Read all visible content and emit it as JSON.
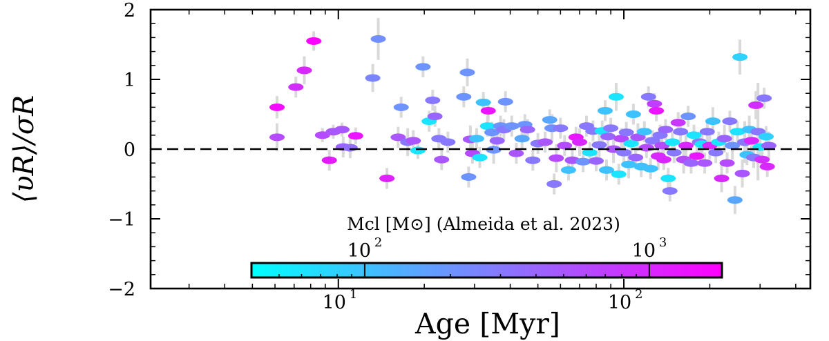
{
  "chart_data": {
    "type": "scatter",
    "title": "",
    "xlabel": "Age [Myr]",
    "ylabel_main": "⟨υR⟩/σR",
    "x_scale": "log",
    "xlim": [
      2.2,
      450
    ],
    "ylim": [
      -2,
      2
    ],
    "x_ticks": [
      {
        "base": "10",
        "exp": "1",
        "value": 10
      },
      {
        "base": "10",
        "exp": "2",
        "value": 100
      }
    ],
    "y_ticks": [
      {
        "label": "2",
        "value": 2
      },
      {
        "label": "1",
        "value": 1
      },
      {
        "label": "0",
        "value": 0
      },
      {
        "label": "−1",
        "value": -1
      },
      {
        "label": "−2",
        "value": -2
      }
    ],
    "reference_line": {
      "y": 0,
      "style": "dashed"
    },
    "grid": false,
    "colorbar": {
      "label": "Mcl [M⊙] (Almeida et al. 2023)",
      "scale": "log",
      "range": [
        40,
        1800
      ],
      "colors": [
        "#00ffff",
        "#ff00ff"
      ],
      "ticks": [
        {
          "base": "10",
          "exp": "2",
          "value": 100
        },
        {
          "base": "10",
          "exp": "3",
          "value": 1000
        }
      ],
      "placement": "bottom-center, inside axes"
    },
    "points": [
      {
        "x": 6.1,
        "y": 0.6,
        "err": 0.16,
        "m": 1500
      },
      {
        "x": 6.1,
        "y": 0.17,
        "err": 0.2,
        "m": 600
      },
      {
        "x": 7.1,
        "y": 0.89,
        "err": 0.15,
        "m": 900
      },
      {
        "x": 7.6,
        "y": 1.13,
        "err": 0.2,
        "m": 1000
      },
      {
        "x": 8.2,
        "y": 1.55,
        "err": 0.14,
        "m": 1700
      },
      {
        "x": 8.8,
        "y": 0.2,
        "err": 0.1,
        "m": 600
      },
      {
        "x": 9.3,
        "y": -0.16,
        "err": 0.15,
        "m": 1200
      },
      {
        "x": 9.6,
        "y": 0.25,
        "err": 0.1,
        "m": 500
      },
      {
        "x": 10.3,
        "y": 0.28,
        "err": 0.1,
        "m": 500
      },
      {
        "x": 10.4,
        "y": 0.03,
        "err": 0.15,
        "m": 400
      },
      {
        "x": 11.0,
        "y": 0.02,
        "err": 0.15,
        "m": 350
      },
      {
        "x": 11.5,
        "y": 0.19,
        "err": 0.12,
        "m": 1300
      },
      {
        "x": 13.2,
        "y": 1.02,
        "err": 0.2,
        "m": 250
      },
      {
        "x": 13.8,
        "y": 1.58,
        "err": 0.3,
        "m": 220
      },
      {
        "x": 14.8,
        "y": -0.42,
        "err": 0.15,
        "m": 1100
      },
      {
        "x": 16.6,
        "y": 0.6,
        "err": 0.15,
        "m": 200
      },
      {
        "x": 16.2,
        "y": 0.17,
        "err": 0.15,
        "m": 500
      },
      {
        "x": 17.5,
        "y": 0.1,
        "err": 0.2,
        "m": 300
      },
      {
        "x": 18.3,
        "y": 0.12,
        "err": 0.15,
        "m": 500
      },
      {
        "x": 19.0,
        "y": -0.02,
        "err": 0.12,
        "m": 60
      },
      {
        "x": 19.8,
        "y": 1.18,
        "err": 0.15,
        "m": 200
      },
      {
        "x": 20.8,
        "y": 0.4,
        "err": 0.15,
        "m": 60
      },
      {
        "x": 21.4,
        "y": 0.7,
        "err": 0.15,
        "m": 300
      },
      {
        "x": 22.5,
        "y": 0.15,
        "err": 0.15,
        "m": 300
      },
      {
        "x": 23.0,
        "y": -0.15,
        "err": 0.15,
        "m": 500
      },
      {
        "x": 21.8,
        "y": 0.47,
        "err": 0.15,
        "m": 400
      },
      {
        "x": 24.2,
        "y": 0.1,
        "err": 0.15,
        "m": 300
      },
      {
        "x": 27.5,
        "y": 0.75,
        "err": 0.15,
        "m": 200
      },
      {
        "x": 28.3,
        "y": 1.1,
        "err": 0.2,
        "m": 200
      },
      {
        "x": 28.6,
        "y": -0.4,
        "err": 0.15,
        "m": 200
      },
      {
        "x": 29.0,
        "y": 0.14,
        "err": 0.2,
        "m": 500
      },
      {
        "x": 29.5,
        "y": -0.06,
        "err": 0.15,
        "m": 600
      },
      {
        "x": 30.5,
        "y": 0.15,
        "err": 0.15,
        "m": 100
      },
      {
        "x": 31.3,
        "y": -0.12,
        "err": 0.15,
        "m": 60
      },
      {
        "x": 32.2,
        "y": 0.67,
        "err": 0.15,
        "m": 100
      },
      {
        "x": 33.5,
        "y": 0.55,
        "err": 0.15,
        "m": 1300
      },
      {
        "x": 33.3,
        "y": 0.33,
        "err": 0.15,
        "m": 60
      },
      {
        "x": 34.5,
        "y": 0.24,
        "err": 0.15,
        "m": 200
      },
      {
        "x": 35.0,
        "y": -0.01,
        "err": 0.2,
        "m": 200
      },
      {
        "x": 36.0,
        "y": 0.12,
        "err": 0.15,
        "m": 400
      },
      {
        "x": 37.0,
        "y": 0.33,
        "err": 0.15,
        "m": 200
      },
      {
        "x": 38.0,
        "y": 0.28,
        "err": 0.15,
        "m": 300
      },
      {
        "x": 38.5,
        "y": 0.68,
        "err": 0.15,
        "m": 200
      },
      {
        "x": 40.5,
        "y": 0.33,
        "err": 0.15,
        "m": 200
      },
      {
        "x": 42.0,
        "y": -0.06,
        "err": 0.15,
        "m": 500
      },
      {
        "x": 44.0,
        "y": 0.15,
        "err": 0.15,
        "m": 150
      },
      {
        "x": 45.0,
        "y": 0.35,
        "err": 0.15,
        "m": 200
      },
      {
        "x": 46.0,
        "y": 0.28,
        "err": 0.15,
        "m": 400
      },
      {
        "x": 48.0,
        "y": -0.16,
        "err": 0.15,
        "m": 300
      },
      {
        "x": 50.0,
        "y": 0.08,
        "err": 0.15,
        "m": 300
      },
      {
        "x": 53.0,
        "y": 0.1,
        "err": 0.15,
        "m": 500
      },
      {
        "x": 55.0,
        "y": 0.42,
        "err": 0.15,
        "m": 150
      },
      {
        "x": 56.0,
        "y": 0.3,
        "err": 0.2,
        "m": 200
      },
      {
        "x": 57.0,
        "y": -0.5,
        "err": 0.15,
        "m": 300
      },
      {
        "x": 58.0,
        "y": -0.13,
        "err": 0.2,
        "m": 600
      },
      {
        "x": 60.0,
        "y": 0.3,
        "err": 0.15,
        "m": 300
      },
      {
        "x": 62.0,
        "y": 0.05,
        "err": 0.15,
        "m": 600
      },
      {
        "x": 64.0,
        "y": -0.3,
        "err": 0.15,
        "m": 100
      },
      {
        "x": 66.0,
        "y": -0.16,
        "err": 0.15,
        "m": 500
      },
      {
        "x": 68.0,
        "y": 0.17,
        "err": 0.15,
        "m": 1300
      },
      {
        "x": 70.0,
        "y": 0.1,
        "err": 0.2,
        "m": 1000
      },
      {
        "x": 72.0,
        "y": -0.18,
        "err": 0.15,
        "m": 200
      },
      {
        "x": 74.0,
        "y": 0.33,
        "err": 0.15,
        "m": 300
      },
      {
        "x": 76.0,
        "y": -0.05,
        "err": 0.15,
        "m": 60
      },
      {
        "x": 78.0,
        "y": 0.26,
        "err": 0.15,
        "m": 300
      },
      {
        "x": 80.0,
        "y": -0.17,
        "err": 0.15,
        "m": 400
      },
      {
        "x": 82.0,
        "y": 0.06,
        "err": 0.2,
        "m": 300
      },
      {
        "x": 84.0,
        "y": 0.26,
        "err": 0.15,
        "m": 60
      },
      {
        "x": 86.0,
        "y": 0.55,
        "err": 0.15,
        "m": 100
      },
      {
        "x": 87.0,
        "y": -0.3,
        "err": 0.15,
        "m": 100
      },
      {
        "x": 88.0,
        "y": 0.18,
        "err": 0.15,
        "m": 400
      },
      {
        "x": 90.0,
        "y": 0.3,
        "err": 0.15,
        "m": 300
      },
      {
        "x": 92.0,
        "y": 0.0,
        "err": 0.2,
        "m": 500
      },
      {
        "x": 94.0,
        "y": 0.75,
        "err": 0.2,
        "m": 60
      },
      {
        "x": 96.0,
        "y": -0.36,
        "err": 0.15,
        "m": 60
      },
      {
        "x": 98.0,
        "y": 0.15,
        "err": 0.15,
        "m": 600
      },
      {
        "x": 100.0,
        "y": -0.05,
        "err": 0.15,
        "m": 300
      },
      {
        "x": 102.0,
        "y": 0.24,
        "err": 0.15,
        "m": 300
      },
      {
        "x": 104.0,
        "y": -0.22,
        "err": 0.2,
        "m": 100
      },
      {
        "x": 106.0,
        "y": 0.08,
        "err": 0.15,
        "m": 60
      },
      {
        "x": 108.0,
        "y": 0.5,
        "err": 0.15,
        "m": 100
      },
      {
        "x": 110.0,
        "y": -0.12,
        "err": 0.15,
        "m": 400
      },
      {
        "x": 112.0,
        "y": 0.17,
        "err": 0.2,
        "m": 500
      },
      {
        "x": 115.0,
        "y": -0.25,
        "err": 0.15,
        "m": 100
      },
      {
        "x": 118.0,
        "y": 0.25,
        "err": 0.15,
        "m": 100
      },
      {
        "x": 120.0,
        "y": 0.02,
        "err": 0.15,
        "m": 600
      },
      {
        "x": 122.0,
        "y": 0.75,
        "err": 0.15,
        "m": 300
      },
      {
        "x": 124.0,
        "y": -0.28,
        "err": 0.15,
        "m": 100
      },
      {
        "x": 126.0,
        "y": 0.12,
        "err": 0.15,
        "m": 300
      },
      {
        "x": 128.0,
        "y": 0.65,
        "err": 0.15,
        "m": 700
      },
      {
        "x": 130.0,
        "y": 0.55,
        "err": 0.15,
        "m": 1300
      },
      {
        "x": 132.0,
        "y": -0.1,
        "err": 0.2,
        "m": 1000
      },
      {
        "x": 134.0,
        "y": 0.2,
        "err": 0.15,
        "m": 300
      },
      {
        "x": 136.0,
        "y": 0.05,
        "err": 0.15,
        "m": 600
      },
      {
        "x": 138.0,
        "y": -0.15,
        "err": 0.15,
        "m": 1000
      },
      {
        "x": 140.0,
        "y": 0.28,
        "err": 0.15,
        "m": 400
      },
      {
        "x": 143.0,
        "y": -0.42,
        "err": 0.15,
        "m": 60
      },
      {
        "x": 145.0,
        "y": -0.6,
        "err": 0.15,
        "m": 300
      },
      {
        "x": 148.0,
        "y": 0.1,
        "err": 0.15,
        "m": 60
      },
      {
        "x": 150.0,
        "y": -0.05,
        "err": 0.15,
        "m": 300
      },
      {
        "x": 155.0,
        "y": 0.38,
        "err": 0.15,
        "m": 800
      },
      {
        "x": 158.0,
        "y": 0.25,
        "err": 0.15,
        "m": 300
      },
      {
        "x": 162.0,
        "y": -0.15,
        "err": 0.2,
        "m": 600
      },
      {
        "x": 165.0,
        "y": 0.05,
        "err": 0.15,
        "m": 1000
      },
      {
        "x": 168.0,
        "y": 0.47,
        "err": 0.15,
        "m": 200
      },
      {
        "x": 172.0,
        "y": -0.2,
        "err": 0.15,
        "m": 400
      },
      {
        "x": 176.0,
        "y": 0.2,
        "err": 0.15,
        "m": 60
      },
      {
        "x": 180.0,
        "y": -0.1,
        "err": 0.15,
        "m": 1300
      },
      {
        "x": 184.0,
        "y": 0.1,
        "err": 0.15,
        "m": 300
      },
      {
        "x": 188.0,
        "y": 0.07,
        "err": 0.15,
        "m": 60
      },
      {
        "x": 192.0,
        "y": -0.2,
        "err": 0.15,
        "m": 500
      },
      {
        "x": 196.0,
        "y": 0.25,
        "err": 0.15,
        "m": 300
      },
      {
        "x": 200.0,
        "y": 0.05,
        "err": 0.2,
        "m": 1000
      },
      {
        "x": 205.0,
        "y": 0.4,
        "err": 0.2,
        "m": 100
      },
      {
        "x": 210.0,
        "y": -0.05,
        "err": 0.15,
        "m": 300
      },
      {
        "x": 215.0,
        "y": 0.1,
        "err": 0.15,
        "m": 60
      },
      {
        "x": 220.0,
        "y": -0.42,
        "err": 0.2,
        "m": 1000
      },
      {
        "x": 225.0,
        "y": 0.15,
        "err": 0.2,
        "m": 400
      },
      {
        "x": 230.0,
        "y": -0.2,
        "err": 0.15,
        "m": 600
      },
      {
        "x": 235.0,
        "y": 0.4,
        "err": 0.15,
        "m": 300
      },
      {
        "x": 240.0,
        "y": 0.05,
        "err": 0.2,
        "m": 200
      },
      {
        "x": 245.0,
        "y": -0.73,
        "err": 0.2,
        "m": 150
      },
      {
        "x": 250.0,
        "y": 0.25,
        "err": 0.15,
        "m": 60
      },
      {
        "x": 255.0,
        "y": 1.32,
        "err": 0.25,
        "m": 80
      },
      {
        "x": 260.0,
        "y": -0.35,
        "err": 0.2,
        "m": 500
      },
      {
        "x": 265.0,
        "y": 0.1,
        "err": 0.3,
        "m": 300
      },
      {
        "x": 270.0,
        "y": -0.08,
        "err": 0.15,
        "m": 100
      },
      {
        "x": 275.0,
        "y": 0.28,
        "err": 0.2,
        "m": 100
      },
      {
        "x": 280.0,
        "y": 0.12,
        "err": 0.2,
        "m": 1000
      },
      {
        "x": 285.0,
        "y": -0.12,
        "err": 0.15,
        "m": 300
      },
      {
        "x": 290.0,
        "y": 0.63,
        "err": 0.2,
        "m": 900
      },
      {
        "x": 295.0,
        "y": 0.25,
        "err": 0.7,
        "m": 300
      },
      {
        "x": 300.0,
        "y": 0.03,
        "err": 0.15,
        "m": 60
      },
      {
        "x": 305.0,
        "y": -0.15,
        "err": 0.15,
        "m": 900
      },
      {
        "x": 310.0,
        "y": 0.73,
        "err": 0.15,
        "m": 300
      },
      {
        "x": 315.0,
        "y": 0.18,
        "err": 0.15,
        "m": 80
      },
      {
        "x": 318.0,
        "y": -0.25,
        "err": 0.15,
        "m": 1000
      },
      {
        "x": 322.0,
        "y": 0.05,
        "err": 0.2,
        "m": 400
      }
    ]
  }
}
